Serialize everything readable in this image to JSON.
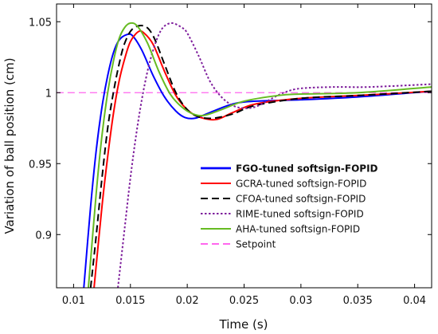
{
  "chart_data": {
    "type": "line",
    "xlabel": "Time (s)",
    "ylabel": "Variation of ball position (cm)",
    "xlim": [
      0.0085,
      0.0415
    ],
    "ylim": [
      0.8625,
      1.0625
    ],
    "x_ticks": [
      0.01,
      0.015,
      0.02,
      0.025,
      0.03,
      0.035,
      0.04
    ],
    "x_tick_labels": [
      "0.01",
      "0.015",
      "0.02",
      "0.025",
      "0.03",
      "0.035",
      "0.04"
    ],
    "y_ticks": [
      0.9,
      0.95,
      1,
      1.05
    ],
    "y_tick_labels": [
      "0.9",
      "0.95",
      "1",
      "1.05"
    ],
    "grid": false,
    "legend_position": "lower-right",
    "series": [
      {
        "name": "FGO-tuned softsign-FOPID",
        "color": "#0000ff",
        "style": "solid",
        "bold_label": true,
        "points": [
          [
            0.0109,
            0.8625
          ],
          [
            0.0115,
            0.92
          ],
          [
            0.012,
            0.96
          ],
          [
            0.0125,
            0.99
          ],
          [
            0.013,
            1.012
          ],
          [
            0.0135,
            1.028
          ],
          [
            0.014,
            1.037
          ],
          [
            0.0147,
            1.041
          ],
          [
            0.0152,
            1.04
          ],
          [
            0.016,
            1.03
          ],
          [
            0.017,
            1.012
          ],
          [
            0.018,
            0.997
          ],
          [
            0.019,
            0.987
          ],
          [
            0.0198,
            0.9825
          ],
          [
            0.0207,
            0.982
          ],
          [
            0.022,
            0.986
          ],
          [
            0.024,
            0.992
          ],
          [
            0.026,
            0.994
          ],
          [
            0.03,
            0.995
          ],
          [
            0.035,
            0.997
          ],
          [
            0.0415,
            1.001
          ]
        ]
      },
      {
        "name": "GCRA-tuned softsign-FOPID",
        "color": "#ff0000",
        "style": "solid",
        "bold_label": false,
        "points": [
          [
            0.0118,
            0.8625
          ],
          [
            0.0125,
            0.92
          ],
          [
            0.013,
            0.955
          ],
          [
            0.0135,
            0.985
          ],
          [
            0.014,
            1.008
          ],
          [
            0.0145,
            1.024
          ],
          [
            0.015,
            1.036
          ],
          [
            0.0157,
            1.043
          ],
          [
            0.0162,
            1.042
          ],
          [
            0.017,
            1.034
          ],
          [
            0.018,
            1.015
          ],
          [
            0.019,
            0.998
          ],
          [
            0.02,
            0.988
          ],
          [
            0.021,
            0.983
          ],
          [
            0.0225,
            0.981
          ],
          [
            0.024,
            0.986
          ],
          [
            0.026,
            0.992
          ],
          [
            0.03,
            0.996
          ],
          [
            0.035,
            0.998
          ],
          [
            0.0415,
            1.001
          ]
        ]
      },
      {
        "name": "CFOA-tuned softsign-FOPID",
        "color": "#000000",
        "style": "dashed",
        "bold_label": false,
        "points": [
          [
            0.0115,
            0.8625
          ],
          [
            0.012,
            0.9
          ],
          [
            0.0125,
            0.94
          ],
          [
            0.013,
            0.975
          ],
          [
            0.0135,
            1.0
          ],
          [
            0.014,
            1.02
          ],
          [
            0.0145,
            1.035
          ],
          [
            0.0152,
            1.045
          ],
          [
            0.0162,
            1.047
          ],
          [
            0.017,
            1.04
          ],
          [
            0.018,
            1.02
          ],
          [
            0.019,
            1.0
          ],
          [
            0.02,
            0.988
          ],
          [
            0.021,
            0.983
          ],
          [
            0.0223,
            0.982
          ],
          [
            0.024,
            0.985
          ],
          [
            0.026,
            0.991
          ],
          [
            0.03,
            0.996
          ],
          [
            0.035,
            0.998
          ],
          [
            0.0415,
            1.001
          ]
        ]
      },
      {
        "name": "RIME-tuned softsign-FOPID",
        "color": "#7e1e9c",
        "style": "dotted",
        "bold_label": false,
        "points": [
          [
            0.0139,
            0.8625
          ],
          [
            0.0145,
            0.905
          ],
          [
            0.015,
            0.94
          ],
          [
            0.0155,
            0.97
          ],
          [
            0.016,
            0.995
          ],
          [
            0.0165,
            1.015
          ],
          [
            0.017,
            1.03
          ],
          [
            0.0175,
            1.041
          ],
          [
            0.018,
            1.047
          ],
          [
            0.0187,
            1.049
          ],
          [
            0.0195,
            1.046
          ],
          [
            0.02,
            1.042
          ],
          [
            0.021,
            1.026
          ],
          [
            0.022,
            1.008
          ],
          [
            0.023,
            0.997
          ],
          [
            0.024,
            0.991
          ],
          [
            0.025,
            0.989
          ],
          [
            0.026,
            0.99
          ],
          [
            0.027,
            0.994
          ],
          [
            0.0285,
            1.0
          ],
          [
            0.03,
            1.003
          ],
          [
            0.033,
            1.004
          ],
          [
            0.036,
            1.004
          ],
          [
            0.0415,
            1.006
          ]
        ]
      },
      {
        "name": "AHA-tuned softsign-FOPID",
        "color": "#66bb22",
        "style": "solid",
        "bold_label": false,
        "points": [
          [
            0.0113,
            0.8625
          ],
          [
            0.012,
            0.93
          ],
          [
            0.0125,
            0.97
          ],
          [
            0.013,
            1.0
          ],
          [
            0.0135,
            1.022
          ],
          [
            0.014,
            1.038
          ],
          [
            0.0145,
            1.046
          ],
          [
            0.015,
            1.049
          ],
          [
            0.0156,
            1.047
          ],
          [
            0.0165,
            1.035
          ],
          [
            0.0175,
            1.015
          ],
          [
            0.0185,
            0.999
          ],
          [
            0.0195,
            0.99
          ],
          [
            0.0205,
            0.985
          ],
          [
            0.0215,
            0.984
          ],
          [
            0.023,
            0.988
          ],
          [
            0.025,
            0.994
          ],
          [
            0.028,
            0.998
          ],
          [
            0.03,
            0.999
          ],
          [
            0.035,
            1.0
          ],
          [
            0.0415,
            1.004
          ]
        ]
      },
      {
        "name": "Setpoint",
        "color": "#ff66ee",
        "style": "dashed",
        "bold_label": false,
        "points": [
          [
            0.0085,
            1.0
          ],
          [
            0.0415,
            1.0
          ]
        ]
      }
    ]
  }
}
